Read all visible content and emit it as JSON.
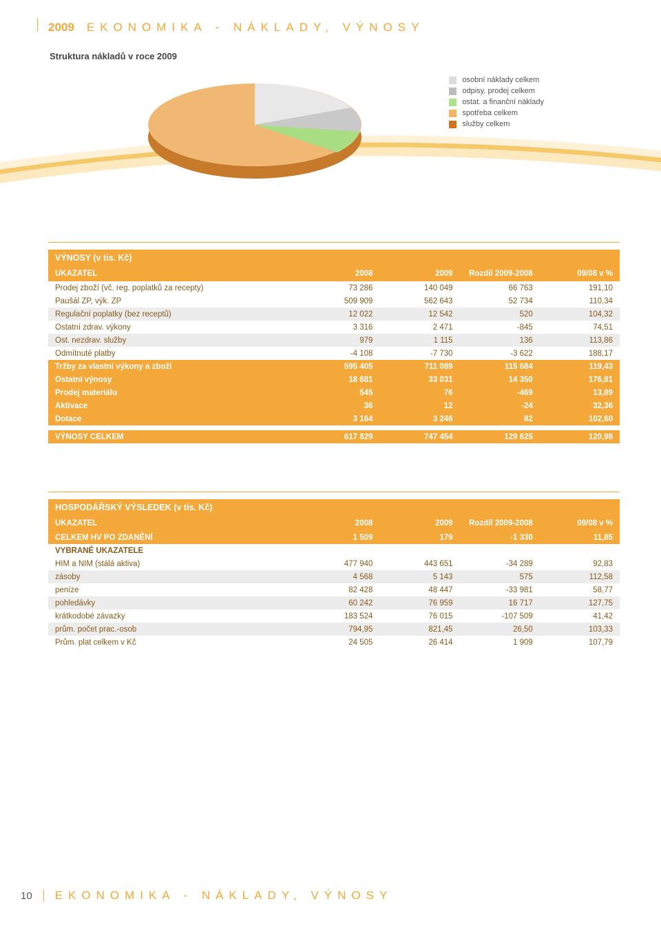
{
  "page": {
    "year": "2009",
    "section_title": "EKONOMIKA - NÁKLADY, VÝNOSY",
    "subtitle": "Struktura nákladů v roce 2009",
    "page_number": "10",
    "footer_section": "EKONOMIKA - NÁKLADY, VÝNOSY"
  },
  "legend": {
    "items": [
      {
        "label": "osobní náklady celkem",
        "color": "#dcdcdc"
      },
      {
        "label": "odpisy, prodej celkem",
        "color": "#bcbcbc"
      },
      {
        "label": "ostat. a finanční náklady",
        "color": "#aee28a"
      },
      {
        "label": "spotřeba celkem",
        "color": "#f4b660"
      },
      {
        "label": "služby celkem",
        "color": "#d0731a"
      }
    ]
  },
  "pie": {
    "colors": {
      "main": "#f1b873",
      "top1": "#e8e8e8",
      "top2": "#c9c9c9",
      "green": "#a9dd84",
      "side": "#c77a29"
    }
  },
  "table1": {
    "title": "VÝNOSY (v tis. Kč)",
    "headers": [
      "UKAZATEL",
      "2008",
      "2009",
      "Rozdíl 2009-2008",
      "09/08 v %"
    ],
    "rows": [
      {
        "style": "brown",
        "cells": [
          "Prodej zboží (vč. reg. poplatků za recepty)",
          "73 286",
          "140 049",
          "66 763",
          "191,10"
        ]
      },
      {
        "style": "brown",
        "cells": [
          "Paušál ZP, výk. ZP",
          "509 909",
          "562 643",
          "52 734",
          "110,34"
        ]
      },
      {
        "style": "brown grey",
        "cells": [
          "Regulační poplatky (bez receptů)",
          "12 022",
          "12 542",
          "520",
          "104,32"
        ]
      },
      {
        "style": "brown",
        "cells": [
          "Ostatní zdrav. výkony",
          "3 316",
          "2 471",
          "-845",
          "74,51"
        ]
      },
      {
        "style": "brown grey",
        "cells": [
          "Ost. nezdrav. služby",
          "979",
          "1 115",
          "136",
          "113,86"
        ]
      },
      {
        "style": "brown",
        "cells": [
          "Odmítnuté platby",
          "-4 108",
          "-7 730",
          "-3 622",
          "188,17"
        ]
      },
      {
        "style": "bold",
        "cells": [
          "Tržby za vlastní výkony a zboží",
          "595 405",
          "711 089",
          "115 684",
          "119,43"
        ]
      },
      {
        "style": "bold",
        "cells": [
          "Ostatní výnosy",
          "18 681",
          "33 031",
          "14 350",
          "176,81"
        ]
      },
      {
        "style": "bold",
        "cells": [
          "Prodej materiálu",
          "545",
          "76",
          "-469",
          "13,89"
        ]
      },
      {
        "style": "bold",
        "cells": [
          "Aktivace",
          "36",
          "12",
          "-24",
          "32,36"
        ]
      },
      {
        "style": "bold",
        "cells": [
          "Dotace",
          "3 164",
          "3 246",
          "82",
          "102,60"
        ]
      },
      {
        "style": "bold totals",
        "cells": [
          "VÝNOSY CELKEM",
          "617 829",
          "747 454",
          "129 625",
          "120,98"
        ]
      }
    ]
  },
  "table2": {
    "title": "HOSPODÁŘSKÝ VÝSLEDEK (v tis. Kč)",
    "headers": [
      "UKAZATEL",
      "2008",
      "2009",
      "Rozdíl 2009-2008",
      "09/08 v %"
    ],
    "rows": [
      {
        "style": "bold",
        "cells": [
          "CELKEM HV PO ZDANĚNÍ",
          "1 509",
          "179",
          "-1 330",
          "11,85"
        ]
      },
      {
        "style": "section",
        "cells": [
          "VYBRANÉ UKAZATELE",
          "",
          "",
          "",
          ""
        ]
      },
      {
        "style": "brown",
        "cells": [
          "HIM a NIM (stálá aktiva)",
          "477 940",
          "443 651",
          "-34 289",
          "92,83"
        ]
      },
      {
        "style": "brown grey",
        "cells": [
          "zásoby",
          "4 568",
          "5 143",
          "575",
          "112,58"
        ]
      },
      {
        "style": "brown",
        "cells": [
          "peníze",
          "82 428",
          "48 447",
          "-33 981",
          "58,77"
        ]
      },
      {
        "style": "brown grey",
        "cells": [
          "pohledávky",
          "60 242",
          "76 959",
          "16 717",
          "127,75"
        ]
      },
      {
        "style": "brown",
        "cells": [
          "krátkodobé závazky",
          "183 524",
          "76 015",
          "-107 509",
          "41,42"
        ]
      },
      {
        "style": "brown grey",
        "cells": [
          "prům. počet prac.-osob",
          "794,95",
          "821,45",
          "26,50",
          "103,33"
        ]
      },
      {
        "style": "brown",
        "cells": [
          "Prům. plat celkem v Kč",
          "24 505",
          "26 414",
          "1 909",
          "107,79"
        ]
      }
    ]
  }
}
